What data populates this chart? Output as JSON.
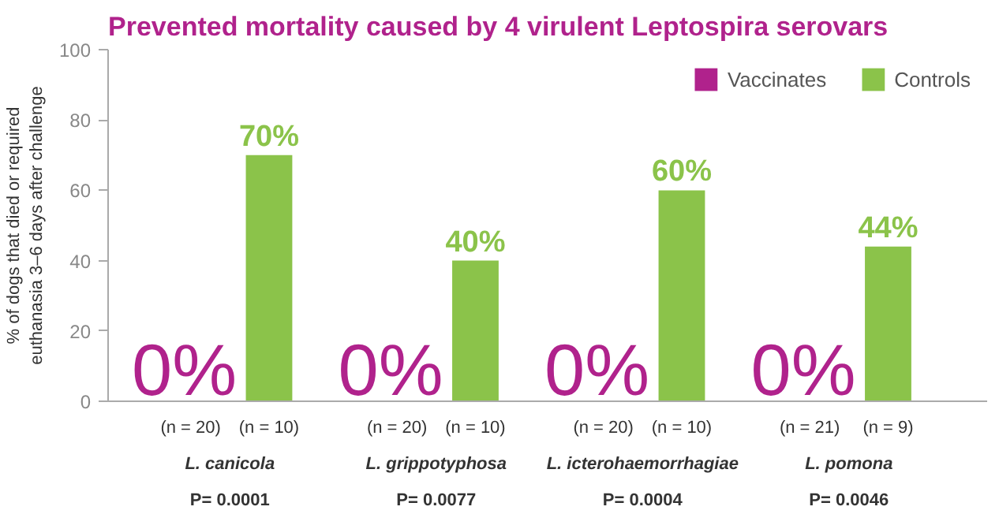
{
  "chart_data": {
    "type": "bar",
    "title": "Prevented mortality caused by 4 virulent Leptospira serovars",
    "ylabel": "% of dogs that died or required\neuthanasia 3–6 days after challenge",
    "categories": [
      "L. canicola",
      "L. grippotyphosa",
      "L. icterohaemorrhagiae",
      "L. pomona"
    ],
    "series": [
      {
        "name": "Vaccinates",
        "color": "#b0228c",
        "values": [
          0,
          0,
          0,
          0
        ],
        "value_labels": [
          "0%",
          "0%",
          "0%",
          "0%"
        ]
      },
      {
        "name": "Controls",
        "color": "#8bc34a",
        "values": [
          70,
          40,
          60,
          44
        ],
        "value_labels": [
          "70%",
          "40%",
          "60%",
          "44%"
        ]
      }
    ],
    "annotations": [
      "(n = 20)",
      "(n = 10)",
      "(n = 20)",
      "(n = 10)",
      "(n = 20)",
      "(n = 10)",
      "(n = 21)",
      "(n = 9)",
      "P= 0.0001",
      "P= 0.0077",
      "P= 0.0004",
      "P= 0.0046"
    ],
    "ylim": [
      0,
      100
    ],
    "yticks": [
      0,
      20,
      40,
      60,
      80,
      100
    ],
    "grid": false,
    "legend": "top right"
  }
}
